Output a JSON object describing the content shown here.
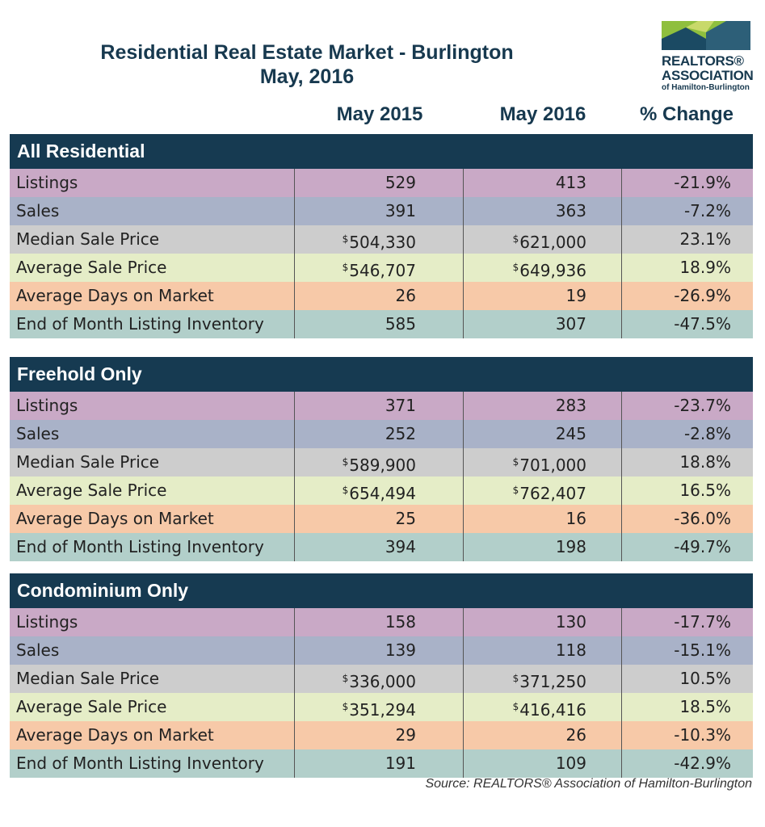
{
  "header": {
    "title_line1": "Residential Real Estate Market - Burlington",
    "title_line2": "May, 2016"
  },
  "logo": {
    "line1": "REALTORS®",
    "line2": "ASSOCIATION",
    "line3": "of Hamilton-Burlington",
    "colors": [
      "#8fbf3e",
      "#1b4a63",
      "#2d5f78"
    ]
  },
  "columns": {
    "col1": "May 2015",
    "col2": "May 2016",
    "col3": "% Change"
  },
  "currency_symbol": "$",
  "sections": [
    {
      "title": "All Residential",
      "rows": [
        {
          "label": "Listings",
          "v2015": "529",
          "v2016": "413",
          "change": "-21.9%"
        },
        {
          "label": "Sales",
          "v2015": "391",
          "v2016": "363",
          "change": "-7.2%"
        },
        {
          "label": "Median Sale Price",
          "v2015": "504,330",
          "v2016": "621,000",
          "change": "23.1%"
        },
        {
          "label": "Average Sale Price",
          "v2015": "546,707",
          "v2016": "649,936",
          "change": "18.9%"
        },
        {
          "label": "Average Days on Market",
          "v2015": "26",
          "v2016": "19",
          "change": "-26.9%"
        },
        {
          "label": "End of Month Listing Inventory",
          "v2015": "585",
          "v2016": "307",
          "change": "-47.5%"
        }
      ]
    },
    {
      "title": "Freehold Only",
      "rows": [
        {
          "label": "Listings",
          "v2015": "371",
          "v2016": "283",
          "change": "-23.7%"
        },
        {
          "label": "Sales",
          "v2015": "252",
          "v2016": "245",
          "change": "-2.8%"
        },
        {
          "label": "Median Sale Price",
          "v2015": "589,900",
          "v2016": "701,000",
          "change": "18.8%"
        },
        {
          "label": "Average Sale Price",
          "v2015": "654,494",
          "v2016": "762,407",
          "change": "16.5%"
        },
        {
          "label": "Average Days on Market",
          "v2015": "25",
          "v2016": "16",
          "change": "-36.0%"
        },
        {
          "label": "End of Month Listing Inventory",
          "v2015": "394",
          "v2016": "198",
          "change": "-49.7%"
        }
      ]
    },
    {
      "title": "Condominium Only",
      "rows": [
        {
          "label": "Listings",
          "v2015": "158",
          "v2016": "130",
          "change": "-17.7%"
        },
        {
          "label": "Sales",
          "v2015": "139",
          "v2016": "118",
          "change": "-15.1%"
        },
        {
          "label": "Median Sale Price",
          "v2015": "336,000",
          "v2016": "371,250",
          "change": "10.5%"
        },
        {
          "label": "Average Sale Price",
          "v2015": "351,294",
          "v2016": "416,416",
          "change": "18.5%"
        },
        {
          "label": "Average Days on Market",
          "v2015": "29",
          "v2016": "26",
          "change": "-10.3%"
        },
        {
          "label": "End of Month Listing Inventory",
          "v2015": "191",
          "v2016": "109",
          "change": "-42.9%"
        }
      ]
    }
  ],
  "source": "Source:  REALTORS® Association of Hamilton-Burlington"
}
